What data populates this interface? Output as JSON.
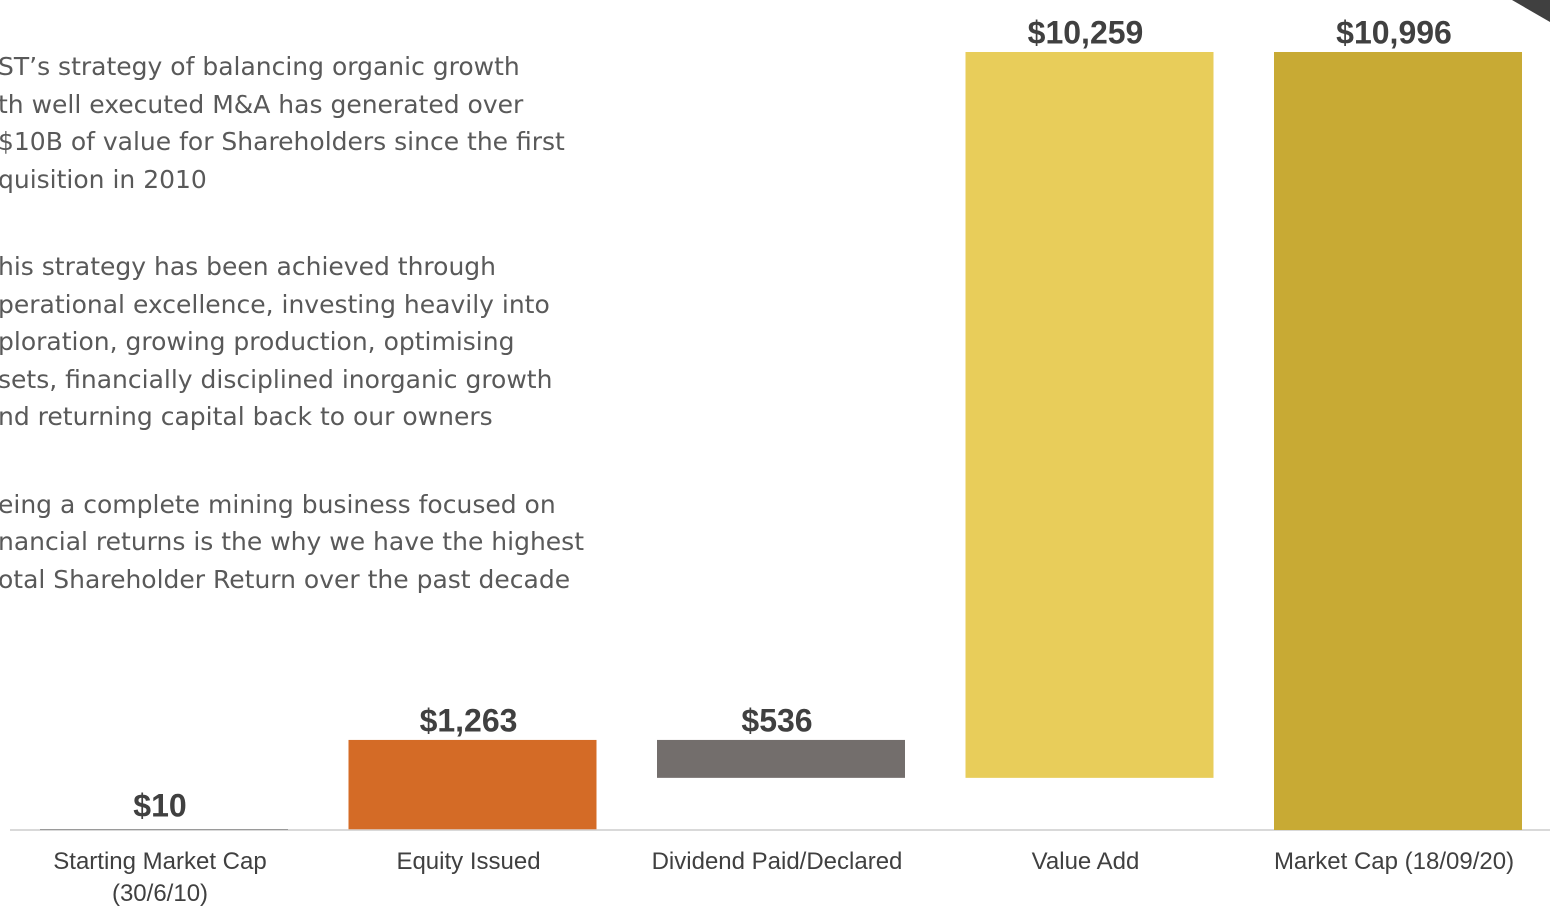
{
  "text": {
    "paragraphs": [
      [
        "ST’s strategy of balancing organic growth",
        "th well executed M&A has generated over",
        "$10B of value for Shareholders since the first",
        "quisition in 2010"
      ],
      [
        "his strategy has been achieved through",
        "perational excellence, investing heavily into",
        "ploration, growing production, optimising",
        "sets, financially disciplined inorganic growth",
        "nd returning capital back to our owners"
      ],
      [
        "eing a complete mining business focused on",
        "nancial returns is the why we have the highest",
        "otal Shareholder Return over the past decade"
      ]
    ]
  },
  "chart_data": {
    "type": "waterfall",
    "categories": [
      "Starting Market Cap\n(30/6/10)",
      "Equity Issued",
      "Dividend Paid/Declared",
      "Value Add",
      "Market Cap (18/09/20)"
    ],
    "values": [
      10,
      1263,
      -536,
      10259,
      10996
    ],
    "value_labels": [
      "$10",
      "$1,263",
      "$536",
      "$10,259",
      "$10,996"
    ],
    "measure": [
      "absolute",
      "relative",
      "relative",
      "relative",
      "total"
    ],
    "colors": [
      "#7f7f7f",
      "#d46b26",
      "#736e6c",
      "#e8cd5a",
      "#c8aa34"
    ]
  }
}
